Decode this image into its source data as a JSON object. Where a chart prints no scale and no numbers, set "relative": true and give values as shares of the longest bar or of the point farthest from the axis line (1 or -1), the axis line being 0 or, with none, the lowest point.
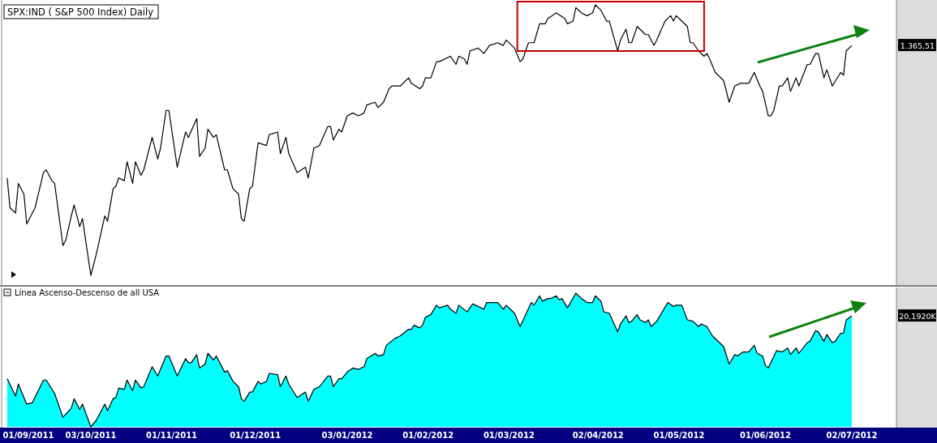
{
  "chart_data": [
    {
      "type": "line",
      "title": "SPX:IND ( S&P 500 Index) Daily",
      "relative": true,
      "tick_labels": false,
      "xlim": [
        "2011-09-01",
        "2012-07-18"
      ],
      "x": [
        "2011-09-03",
        "2011-09-04",
        "2011-09-06",
        "2011-09-07",
        "2011-09-09",
        "2011-09-10",
        "2011-09-13",
        "2011-09-16",
        "2011-09-17",
        "2011-09-19",
        "2011-09-20",
        "2011-09-23",
        "2011-09-24",
        "2011-09-26",
        "2011-09-27",
        "2011-09-29",
        "2011-09-30",
        "2011-10-03",
        "2011-10-05",
        "2011-10-08",
        "2011-10-09",
        "2011-10-11",
        "2011-10-12",
        "2011-10-13",
        "2011-10-15",
        "2011-10-16",
        "2011-10-18",
        "2011-10-19",
        "2011-10-21",
        "2011-10-22",
        "2011-10-25",
        "2011-10-27",
        "2011-10-28",
        "2011-10-30",
        "2011-10-31",
        "2011-11-03",
        "2011-11-06",
        "2011-11-07",
        "2011-11-10",
        "2011-11-11",
        "2011-11-13",
        "2011-11-14",
        "2011-11-16",
        "2011-11-17",
        "2011-11-20",
        "2011-11-21",
        "2011-11-23",
        "2011-11-25",
        "2011-11-26",
        "2011-11-27",
        "2011-11-29",
        "2011-11-30",
        "2011-12-02",
        "2011-12-05",
        "2011-12-06",
        "2011-12-09",
        "2011-12-10",
        "2011-12-12",
        "2011-12-13",
        "2011-12-16",
        "2011-12-19",
        "2011-12-20",
        "2011-12-22",
        "2011-12-24",
        "2011-12-27",
        "2011-12-28",
        "2011-12-29",
        "2011-12-31",
        "2012-01-01",
        "2012-01-03",
        "2012-01-05",
        "2012-01-07",
        "2012-01-09",
        "2012-01-10",
        "2012-01-13",
        "2012-01-14",
        "2012-01-16",
        "2012-01-18",
        "2012-01-19",
        "2012-01-22",
        "2012-01-25",
        "2012-01-26",
        "2012-01-29",
        "2012-01-30",
        "2012-01-31",
        "2012-02-02",
        "2012-02-04",
        "2012-02-05",
        "2012-02-09",
        "2012-02-11",
        "2012-02-12",
        "2012-02-14",
        "2012-02-15",
        "2012-02-16",
        "2012-02-19",
        "2012-02-21",
        "2012-02-23",
        "2012-02-26",
        "2012-02-28",
        "2012-02-29",
        "2012-03-03",
        "2012-03-05",
        "2012-03-06",
        "2012-03-08",
        "2012-03-10",
        "2012-03-12",
        "2012-03-14",
        "2012-03-15",
        "2012-03-18",
        "2012-03-21",
        "2012-03-22",
        "2012-03-24",
        "2012-03-25",
        "2012-03-27",
        "2012-03-29",
        "2012-03-31",
        "2012-04-01",
        "2012-04-03",
        "2012-04-05",
        "2012-04-06",
        "2012-04-09",
        "2012-04-10",
        "2012-04-12",
        "2012-04-13",
        "2012-04-14",
        "2012-04-16",
        "2012-04-19",
        "2012-04-20",
        "2012-04-22",
        "2012-04-23",
        "2012-04-26",
        "2012-04-28",
        "2012-04-29",
        "2012-04-30",
        "2012-05-02",
        "2012-05-04",
        "2012-05-05",
        "2012-05-06",
        "2012-05-08",
        "2012-05-10",
        "2012-05-11",
        "2012-05-12",
        "2012-05-14",
        "2012-05-17",
        "2012-05-19",
        "2012-05-21",
        "2012-05-23",
        "2012-05-26",
        "2012-05-28",
        "2012-05-30",
        "2012-05-31",
        "2012-06-02",
        "2012-06-03",
        "2012-06-04",
        "2012-06-06",
        "2012-06-07",
        "2012-06-09",
        "2012-06-10",
        "2012-06-12",
        "2012-06-13",
        "2012-06-16",
        "2012-06-17",
        "2012-06-19",
        "2012-06-20",
        "2012-06-22",
        "2012-06-23",
        "2012-06-25",
        "2012-06-28",
        "2012-06-29",
        "2012-06-30",
        "2012-07-02"
      ],
      "series": [
        {
          "color": "#000000",
          "values": [
            0.36,
            0.25,
            0.23,
            0.34,
            0.3,
            0.19,
            0.25,
            0.38,
            0.39,
            0.35,
            0.34,
            0.11,
            0.13,
            0.22,
            0.26,
            0.18,
            0.21,
            0.0,
            0.08,
            0.22,
            0.2,
            0.32,
            0.33,
            0.36,
            0.35,
            0.42,
            0.34,
            0.42,
            0.37,
            0.39,
            0.51,
            0.43,
            0.47,
            0.61,
            0.61,
            0.4,
            0.53,
            0.51,
            0.58,
            0.44,
            0.47,
            0.54,
            0.51,
            0.52,
            0.39,
            0.39,
            0.32,
            0.3,
            0.21,
            0.2,
            0.32,
            0.33,
            0.49,
            0.48,
            0.52,
            0.53,
            0.45,
            0.51,
            0.45,
            0.38,
            0.4,
            0.36,
            0.47,
            0.48,
            0.55,
            0.55,
            0.5,
            0.54,
            0.53,
            0.59,
            0.6,
            0.59,
            0.6,
            0.63,
            0.64,
            0.62,
            0.64,
            0.69,
            0.7,
            0.7,
            0.73,
            0.71,
            0.69,
            0.7,
            0.73,
            0.73,
            0.79,
            0.79,
            0.81,
            0.78,
            0.81,
            0.8,
            0.78,
            0.83,
            0.84,
            0.82,
            0.85,
            0.86,
            0.85,
            0.87,
            0.84,
            0.79,
            0.8,
            0.86,
            0.86,
            0.93,
            0.93,
            0.95,
            0.97,
            0.95,
            0.93,
            0.94,
            0.99,
            0.97,
            0.96,
            0.97,
            1.0,
            0.98,
            0.94,
            0.94,
            0.83,
            0.87,
            0.91,
            0.86,
            0.86,
            0.92,
            0.89,
            0.89,
            0.85,
            0.87,
            0.94,
            0.96,
            0.94,
            0.96,
            0.94,
            0.92,
            0.86,
            0.86,
            0.83,
            0.81,
            0.82,
            0.8,
            0.75,
            0.72,
            0.64,
            0.7,
            0.71,
            0.71,
            0.75,
            0.7,
            0.68,
            0.59,
            0.59,
            0.61,
            0.7,
            0.7,
            0.73,
            0.68,
            0.73,
            0.7,
            0.78,
            0.78,
            0.82,
            0.82,
            0.73,
            0.76,
            0.7,
            0.75,
            0.74,
            0.83,
            0.85
          ]
        }
      ],
      "annotations": [
        "1.365,51"
      ]
    },
    {
      "type": "area",
      "title": "Línea Ascenso-Descenso de all USA",
      "relative": true,
      "tick_labels": "x",
      "xlim": [
        "2011-09-01",
        "2012-07-18"
      ],
      "xticks": [
        {
          "value": "2011-09-01",
          "label": "01/09/2011"
        },
        {
          "value": "2011-10-03",
          "label": "03/10/2011"
        },
        {
          "value": "2011-11-01",
          "label": "01/11/2011"
        },
        {
          "value": "2011-12-01",
          "label": "01/12/2011"
        },
        {
          "value": "2012-01-03",
          "label": "03/01/2012"
        },
        {
          "value": "2012-02-01",
          "label": "01/02/2012"
        },
        {
          "value": "2012-03-01",
          "label": "01/03/2012"
        },
        {
          "value": "2012-04-02",
          "label": "02/04/2012"
        },
        {
          "value": "2012-05-01",
          "label": "01/05/2012"
        },
        {
          "value": "2012-06-01",
          "label": "01/06/2012"
        },
        {
          "value": "2012-07-02",
          "label": "02/07/2012"
        }
      ],
      "x": [
        "2011-09-03",
        "2011-09-06",
        "2011-09-07",
        "2011-09-10",
        "2011-09-12",
        "2011-09-16",
        "2011-09-17",
        "2011-09-20",
        "2011-09-23",
        "2011-09-26",
        "2011-09-27",
        "2011-09-29",
        "2011-09-30",
        "2011-10-03",
        "2011-10-05",
        "2011-10-08",
        "2011-10-09",
        "2011-10-11",
        "2011-10-12",
        "2011-10-13",
        "2011-10-15",
        "2011-10-16",
        "2011-10-18",
        "2011-10-19",
        "2011-10-21",
        "2011-10-22",
        "2011-10-25",
        "2011-10-27",
        "2011-10-28",
        "2011-10-30",
        "2011-10-31",
        "2011-11-03",
        "2011-11-06",
        "2011-11-07",
        "2011-11-08",
        "2011-11-10",
        "2011-11-11",
        "2011-11-13",
        "2011-11-14",
        "2011-11-16",
        "2011-11-17",
        "2011-11-20",
        "2011-11-21",
        "2011-11-23",
        "2011-11-25",
        "2011-11-26",
        "2011-11-27",
        "2011-11-29",
        "2011-11-30",
        "2011-12-02",
        "2011-12-03",
        "2011-12-05",
        "2011-12-06",
        "2011-12-09",
        "2011-12-10",
        "2011-12-12",
        "2011-12-13",
        "2011-12-16",
        "2011-12-19",
        "2011-12-20",
        "2011-12-22",
        "2011-12-24",
        "2011-12-27",
        "2011-12-28",
        "2011-12-29",
        "2011-12-31",
        "2012-01-01",
        "2012-01-03",
        "2012-01-05",
        "2012-01-07",
        "2012-01-09",
        "2012-01-10",
        "2012-01-13",
        "2012-01-14",
        "2012-01-16",
        "2012-01-17",
        "2012-01-20",
        "2012-01-22",
        "2012-01-25",
        "2012-01-26",
        "2012-01-27",
        "2012-01-29",
        "2012-01-30",
        "2012-01-31",
        "2012-02-02",
        "2012-02-04",
        "2012-02-05",
        "2012-02-08",
        "2012-02-09",
        "2012-02-11",
        "2012-02-12",
        "2012-02-15",
        "2012-02-17",
        "2012-02-18",
        "2012-02-21",
        "2012-02-22",
        "2012-02-26",
        "2012-02-28",
        "2012-02-29",
        "2012-03-03",
        "2012-03-05",
        "2012-03-09",
        "2012-03-10",
        "2012-03-12",
        "2012-03-13",
        "2012-03-15",
        "2012-03-16",
        "2012-03-18",
        "2012-03-19",
        "2012-03-20",
        "2012-03-22",
        "2012-03-25",
        "2012-03-27",
        "2012-03-29",
        "2012-03-31",
        "2012-04-01",
        "2012-04-03",
        "2012-04-04",
        "2012-04-06",
        "2012-04-09",
        "2012-04-10",
        "2012-04-12",
        "2012-04-13",
        "2012-04-14",
        "2012-04-16",
        "2012-04-17",
        "2012-04-19",
        "2012-04-20",
        "2012-04-21",
        "2012-04-23",
        "2012-04-25",
        "2012-04-27",
        "2012-04-29",
        "2012-04-30",
        "2012-05-02",
        "2012-05-04",
        "2012-05-06",
        "2012-05-08",
        "2012-05-09",
        "2012-05-11",
        "2012-05-13",
        "2012-05-17",
        "2012-05-19",
        "2012-05-21",
        "2012-05-22",
        "2012-05-24",
        "2012-05-26",
        "2012-05-28",
        "2012-05-29",
        "2012-05-31",
        "2012-06-01",
        "2012-06-02",
        "2012-06-05",
        "2012-06-07",
        "2012-06-09",
        "2012-06-10",
        "2012-06-12",
        "2012-06-13",
        "2012-06-16",
        "2012-06-17",
        "2012-06-19",
        "2012-06-20",
        "2012-06-22",
        "2012-06-23",
        "2012-06-25",
        "2012-06-26",
        "2012-06-28",
        "2012-06-29",
        "2012-06-30",
        "2012-07-02"
      ],
      "series": [
        {
          "color": "#00ffff",
          "values": [
            0.36,
            0.23,
            0.32,
            0.17,
            0.18,
            0.35,
            0.35,
            0.25,
            0.07,
            0.14,
            0.21,
            0.13,
            0.17,
            0.0,
            0.05,
            0.17,
            0.12,
            0.21,
            0.22,
            0.29,
            0.28,
            0.35,
            0.27,
            0.35,
            0.29,
            0.3,
            0.45,
            0.38,
            0.43,
            0.53,
            0.53,
            0.38,
            0.51,
            0.48,
            0.48,
            0.54,
            0.44,
            0.47,
            0.55,
            0.5,
            0.53,
            0.41,
            0.42,
            0.34,
            0.3,
            0.21,
            0.19,
            0.26,
            0.26,
            0.34,
            0.32,
            0.34,
            0.4,
            0.39,
            0.3,
            0.38,
            0.32,
            0.22,
            0.26,
            0.19,
            0.28,
            0.3,
            0.38,
            0.38,
            0.3,
            0.36,
            0.36,
            0.41,
            0.44,
            0.43,
            0.45,
            0.51,
            0.55,
            0.53,
            0.54,
            0.61,
            0.66,
            0.68,
            0.73,
            0.73,
            0.76,
            0.74,
            0.76,
            0.82,
            0.84,
            0.91,
            0.89,
            0.91,
            0.88,
            0.85,
            0.91,
            0.86,
            0.92,
            0.91,
            0.88,
            0.93,
            0.93,
            0.88,
            0.91,
            0.85,
            0.75,
            0.93,
            0.91,
            0.98,
            0.94,
            0.96,
            0.96,
            0.98,
            0.95,
            0.96,
            0.89,
            1.0,
            0.96,
            0.93,
            0.93,
            0.98,
            0.94,
            0.86,
            0.85,
            0.71,
            0.77,
            0.83,
            0.78,
            0.79,
            0.84,
            0.8,
            0.78,
            0.8,
            0.75,
            0.79,
            0.86,
            0.93,
            0.9,
            0.91,
            0.91,
            0.8,
            0.79,
            0.75,
            0.77,
            0.75,
            0.68,
            0.6,
            0.47,
            0.54,
            0.53,
            0.56,
            0.56,
            0.61,
            0.55,
            0.53,
            0.46,
            0.44,
            0.57,
            0.56,
            0.59,
            0.54,
            0.59,
            0.55,
            0.63,
            0.64,
            0.72,
            0.71,
            0.64,
            0.69,
            0.63,
            0.64,
            0.7,
            0.7,
            0.8,
            0.83
          ]
        }
      ],
      "annotations": [
        "20,1920K"
      ]
    }
  ]
}
